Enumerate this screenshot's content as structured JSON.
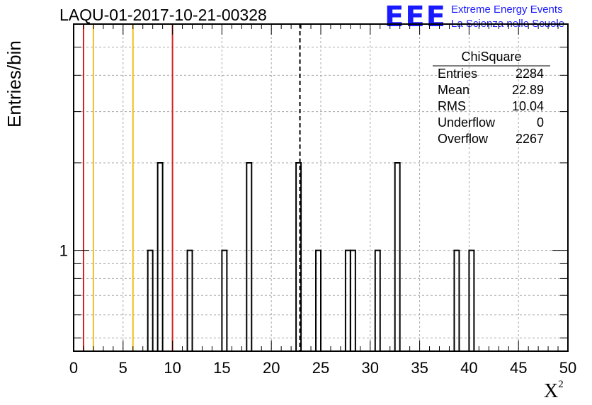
{
  "header": {
    "title": "LAQU-01-2017-10-21-00328",
    "logo_text": "EEE",
    "logo_line1": "Extreme Energy Events",
    "logo_line2": "La Scienza nelle Scuole"
  },
  "stats": {
    "name": "ChiSquare",
    "rows": [
      {
        "label": "Entries",
        "value": "2284"
      },
      {
        "label": "Mean",
        "value": "22.89"
      },
      {
        "label": "RMS",
        "value": "10.04"
      },
      {
        "label": "Underflow",
        "value": "0"
      },
      {
        "label": "Overflow",
        "value": "2267"
      }
    ]
  },
  "colors": {
    "red": "#d42020",
    "yellow": "#f0c020",
    "accent": "#1a1aff"
  },
  "chart_data": {
    "type": "bar",
    "title": "LAQU-01-2017-10-21-00328",
    "xlabel": "X",
    "xlabel_sup": "2",
    "ylabel": "Entries/bin",
    "xlim": [
      0,
      50
    ],
    "ylim": [
      0.45,
      6
    ],
    "yscale": "log",
    "grid": true,
    "bin_width": 0.5,
    "xticks": [
      "0",
      "5",
      "10",
      "15",
      "20",
      "25",
      "30",
      "35",
      "40",
      "45",
      "50"
    ],
    "ytick_labels": [
      {
        "value": 1,
        "label": "1"
      }
    ],
    "bins": [
      {
        "x": 7.5,
        "count": 1
      },
      {
        "x": 8.5,
        "count": 2
      },
      {
        "x": 11.5,
        "count": 1
      },
      {
        "x": 15.0,
        "count": 1
      },
      {
        "x": 17.5,
        "count": 2
      },
      {
        "x": 22.5,
        "count": 2
      },
      {
        "x": 24.5,
        "count": 1
      },
      {
        "x": 27.5,
        "count": 1
      },
      {
        "x": 28.0,
        "count": 1
      },
      {
        "x": 30.5,
        "count": 1
      },
      {
        "x": 32.5,
        "count": 2
      },
      {
        "x": 38.5,
        "count": 1
      },
      {
        "x": 40.0,
        "count": 1
      }
    ],
    "vlines": [
      {
        "x": 1,
        "color": "red"
      },
      {
        "x": 2,
        "color": "yellow"
      },
      {
        "x": 6,
        "color": "yellow"
      },
      {
        "x": 10,
        "color": "red"
      },
      {
        "x": 22.89,
        "color": "black",
        "dashed": true
      }
    ]
  }
}
